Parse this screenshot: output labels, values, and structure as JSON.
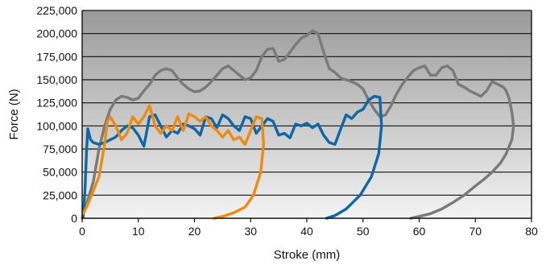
{
  "chart_data": {
    "type": "line",
    "title": "",
    "xlabel": "Stroke (mm)",
    "ylabel": "Force (N)",
    "xlim": [
      0,
      80
    ],
    "ylim": [
      0,
      225000
    ],
    "xticks": [
      0,
      10,
      20,
      30,
      40,
      50,
      60,
      70,
      80
    ],
    "xtick_labels": [
      "0",
      "10",
      "20",
      "30",
      "40",
      "50",
      "60",
      "70",
      "80"
    ],
    "yticks": [
      0,
      25000,
      50000,
      75000,
      100000,
      125000,
      150000,
      175000,
      200000,
      225000
    ],
    "ytick_labels": [
      "0",
      "25,000",
      "50,000",
      "75,000",
      "100,000",
      "125,000",
      "150,000",
      "175,000",
      "200,000",
      "225,000"
    ],
    "grid": "horizontal",
    "background": "vertical gradient, dark grey at top to light grey at bottom",
    "colors": {
      "gradient_top": "#9a9a9a",
      "gradient_bottom": "#f3f3f3",
      "grid": "#111111"
    },
    "series": [
      {
        "color": "#7a7a7a",
        "points": [
          [
            0,
            0
          ],
          [
            2,
            40000
          ],
          [
            3,
            75000
          ],
          [
            4,
            100000
          ],
          [
            5,
            118000
          ],
          [
            6,
            128000
          ],
          [
            7,
            132000
          ],
          [
            8,
            131000
          ],
          [
            9,
            128000
          ],
          [
            10,
            130000
          ],
          [
            11,
            138000
          ],
          [
            12,
            145000
          ],
          [
            13,
            155000
          ],
          [
            14,
            160000
          ],
          [
            15,
            162000
          ],
          [
            16,
            160000
          ],
          [
            17,
            152000
          ],
          [
            18,
            145000
          ],
          [
            19,
            140000
          ],
          [
            20,
            137000
          ],
          [
            21,
            138000
          ],
          [
            22,
            142000
          ],
          [
            23,
            148000
          ],
          [
            24,
            155000
          ],
          [
            25,
            162000
          ],
          [
            26,
            165000
          ],
          [
            27,
            160000
          ],
          [
            28,
            155000
          ],
          [
            29,
            150000
          ],
          [
            30,
            152000
          ],
          [
            31,
            160000
          ],
          [
            32,
            175000
          ],
          [
            33,
            183000
          ],
          [
            34,
            184000
          ],
          [
            35,
            170000
          ],
          [
            36,
            172000
          ],
          [
            37,
            180000
          ],
          [
            38,
            188000
          ],
          [
            39,
            195000
          ],
          [
            40,
            198000
          ],
          [
            41,
            203000
          ],
          [
            42,
            200000
          ],
          [
            43,
            180000
          ],
          [
            44,
            162000
          ],
          [
            45,
            158000
          ],
          [
            46,
            152000
          ],
          [
            47,
            150000
          ],
          [
            48,
            148000
          ],
          [
            49,
            145000
          ],
          [
            50,
            140000
          ],
          [
            51,
            128000
          ],
          [
            52,
            118000
          ],
          [
            53,
            110000
          ],
          [
            54,
            112000
          ],
          [
            55,
            122000
          ],
          [
            56,
            135000
          ],
          [
            57,
            145000
          ],
          [
            58,
            153000
          ],
          [
            59,
            160000
          ],
          [
            60,
            163000
          ],
          [
            61,
            165000
          ],
          [
            62,
            155000
          ],
          [
            63,
            155000
          ],
          [
            64,
            163000
          ],
          [
            65,
            165000
          ],
          [
            66,
            160000
          ],
          [
            67,
            145000
          ],
          [
            68,
            142000
          ],
          [
            69,
            138000
          ],
          [
            70,
            135000
          ],
          [
            71,
            132000
          ],
          [
            72,
            138000
          ],
          [
            73,
            148000
          ],
          [
            74,
            145000
          ],
          [
            75,
            142000
          ],
          [
            75.5,
            138000
          ],
          [
            76,
            130000
          ],
          [
            76.5,
            115000
          ],
          [
            76.8,
            100000
          ],
          [
            76.5,
            85000
          ],
          [
            75.5,
            70000
          ],
          [
            74.5,
            60000
          ],
          [
            73,
            50000
          ],
          [
            71.5,
            42000
          ],
          [
            70,
            35000
          ],
          [
            68,
            25000
          ],
          [
            66,
            17000
          ],
          [
            64,
            10000
          ],
          [
            62,
            5000
          ],
          [
            60,
            2000
          ],
          [
            58.5,
            0
          ]
        ]
      },
      {
        "color": "#0f68a6",
        "points": [
          [
            0.2,
            2000
          ],
          [
            0.5,
            30000
          ],
          [
            0.8,
            75000
          ],
          [
            1,
            97000
          ],
          [
            1.5,
            85000
          ],
          [
            2,
            82000
          ],
          [
            3,
            80000
          ],
          [
            4,
            82000
          ],
          [
            5,
            85000
          ],
          [
            6,
            88000
          ],
          [
            7,
            95000
          ],
          [
            8,
            100000
          ],
          [
            9,
            98000
          ],
          [
            10,
            90000
          ],
          [
            11,
            78000
          ],
          [
            12,
            110000
          ],
          [
            13,
            112000
          ],
          [
            14,
            100000
          ],
          [
            15,
            88000
          ],
          [
            16,
            95000
          ],
          [
            17,
            92000
          ],
          [
            18,
            102000
          ],
          [
            19,
            100000
          ],
          [
            20,
            97000
          ],
          [
            21,
            90000
          ],
          [
            22,
            110000
          ],
          [
            23,
            108000
          ],
          [
            24,
            98000
          ],
          [
            25,
            112000
          ],
          [
            26,
            108000
          ],
          [
            27,
            100000
          ],
          [
            28,
            95000
          ],
          [
            29,
            110000
          ],
          [
            30,
            108000
          ],
          [
            31,
            92000
          ],
          [
            32,
            100000
          ],
          [
            33,
            108000
          ],
          [
            34,
            105000
          ],
          [
            35,
            90000
          ],
          [
            36,
            92000
          ],
          [
            37,
            87000
          ],
          [
            38,
            102000
          ],
          [
            39,
            100000
          ],
          [
            40,
            103000
          ],
          [
            41,
            98000
          ],
          [
            42,
            102000
          ],
          [
            43,
            90000
          ],
          [
            44,
            82000
          ],
          [
            45,
            80000
          ],
          [
            46,
            96000
          ],
          [
            47,
            112000
          ],
          [
            48,
            108000
          ],
          [
            49,
            115000
          ],
          [
            50,
            118000
          ],
          [
            51,
            128000
          ],
          [
            52,
            132000
          ],
          [
            53,
            131000
          ],
          [
            53.3,
            100000
          ],
          [
            52.8,
            70000
          ],
          [
            51.5,
            45000
          ],
          [
            49.5,
            25000
          ],
          [
            47,
            10000
          ],
          [
            45,
            3000
          ],
          [
            43.5,
            0
          ]
        ]
      },
      {
        "color": "#ee8a10",
        "points": [
          [
            0.2,
            5000
          ],
          [
            1,
            15000
          ],
          [
            2,
            30000
          ],
          [
            3,
            45000
          ],
          [
            4,
            80000
          ],
          [
            4.5,
            105000
          ],
          [
            5,
            110000
          ],
          [
            6,
            100000
          ],
          [
            7,
            85000
          ],
          [
            8,
            92000
          ],
          [
            9,
            110000
          ],
          [
            10,
            102000
          ],
          [
            11,
            110000
          ],
          [
            12,
            122000
          ],
          [
            13,
            100000
          ],
          [
            14,
            92000
          ],
          [
            15,
            100000
          ],
          [
            16,
            95000
          ],
          [
            17,
            110000
          ],
          [
            18,
            95000
          ],
          [
            19,
            113000
          ],
          [
            20,
            110000
          ],
          [
            21,
            105000
          ],
          [
            22,
            110000
          ],
          [
            23,
            100000
          ],
          [
            24,
            95000
          ],
          [
            25,
            88000
          ],
          [
            26,
            95000
          ],
          [
            27,
            85000
          ],
          [
            28,
            88000
          ],
          [
            29,
            80000
          ],
          [
            30,
            95000
          ],
          [
            31,
            110000
          ],
          [
            32,
            108000
          ],
          [
            32.3,
            80000
          ],
          [
            31.8,
            50000
          ],
          [
            30.5,
            25000
          ],
          [
            29,
            12000
          ],
          [
            27,
            6000
          ],
          [
            25,
            2000
          ],
          [
            23.5,
            0
          ]
        ]
      }
    ]
  }
}
